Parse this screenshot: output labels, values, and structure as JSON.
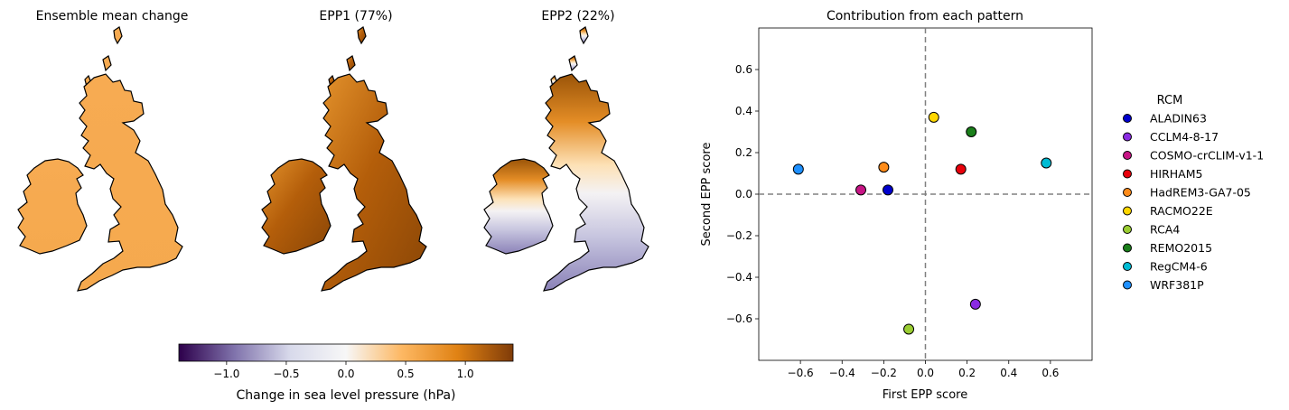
{
  "maps": [
    {
      "title": "Ensemble mean change",
      "fill": "uniform"
    },
    {
      "title": "EPP1 (77%)",
      "fill": "gradient-strong"
    },
    {
      "title": "EPP2 (22%)",
      "fill": "north-south"
    }
  ],
  "colorbar": {
    "label": "Change in sea level pressure (hPa)",
    "min": -1.4,
    "max": 1.4,
    "ticks": [
      -1.0,
      -0.5,
      0.0,
      0.5,
      1.0
    ],
    "tick_labels": [
      "−1.0",
      "−0.5",
      "0.0",
      "0.5",
      "1.0"
    ],
    "colors": [
      "#2d004b",
      "#8073ac",
      "#d8daeb",
      "#f7f7f7",
      "#fdb863",
      "#e08214",
      "#7f3b08"
    ]
  },
  "chart_data": {
    "type": "scatter",
    "title": "Contribution from each pattern",
    "xlabel": "First EPP score",
    "ylabel": "Second EPP score",
    "xlim": [
      -0.8,
      0.8
    ],
    "ylim": [
      -0.8,
      0.8
    ],
    "xticks": [
      -0.6,
      -0.4,
      -0.2,
      0.0,
      0.2,
      0.4,
      0.6
    ],
    "xtick_labels": [
      "−0.6",
      "−0.4",
      "−0.2",
      "0.0",
      "0.2",
      "0.4",
      "0.6"
    ],
    "yticks": [
      -0.6,
      -0.4,
      -0.2,
      0.0,
      0.2,
      0.4,
      0.6
    ],
    "ytick_labels": [
      "−0.6",
      "−0.4",
      "−0.2",
      "0.0",
      "0.2",
      "0.4",
      "0.6"
    ],
    "reference_lines": {
      "x": 0,
      "y": 0,
      "style": "dashed",
      "color": "#808080"
    },
    "legend": {
      "title": "RCM",
      "placement": "right-outside"
    },
    "series": [
      {
        "name": "ALADIN63",
        "color": "#0000cd",
        "x": -0.18,
        "y": 0.02
      },
      {
        "name": "CCLM4-8-17",
        "color": "#8a2be2",
        "x": 0.24,
        "y": -0.53
      },
      {
        "name": "COSMO-crCLIM-v1-1",
        "color": "#c71585",
        "x": -0.31,
        "y": 0.02
      },
      {
        "name": "HIRHAM5",
        "color": "#e8000b",
        "x": 0.17,
        "y": 0.12
      },
      {
        "name": "HadREM3-GA7-05",
        "color": "#ff8c1a",
        "x": -0.2,
        "y": 0.13
      },
      {
        "name": "RACMO22E",
        "color": "#ffd700",
        "x": 0.04,
        "y": 0.37
      },
      {
        "name": "RCA4",
        "color": "#9acd32",
        "x": -0.08,
        "y": -0.65
      },
      {
        "name": "REMO2015",
        "color": "#1a7f1a",
        "x": 0.22,
        "y": 0.3
      },
      {
        "name": "RegCM4-6",
        "color": "#00bcd4",
        "x": 0.58,
        "y": 0.15
      },
      {
        "name": "WRF381P",
        "color": "#1e90ff",
        "x": -0.61,
        "y": 0.12
      }
    ]
  }
}
